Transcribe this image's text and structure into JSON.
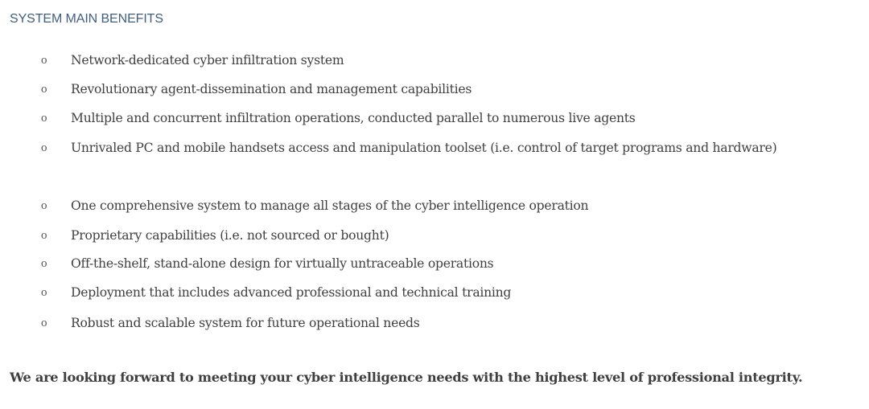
{
  "heading": "SYSTEM MAIN BENEFITS",
  "bullet_glyph": "o",
  "benefits": [
    "Network-dedicated cyber infiltration system",
    "Revolutionary agent-dissemination and management capabilities",
    "Multiple and concurrent infiltration operations, conducted parallel to numerous live agents",
    "Unrivaled PC and mobile handsets access and manipulation toolset (i.e. control of target programs and hardware)",
    "One comprehensive system to manage all stages of the cyber intelligence operation",
    "Proprietary capabilities (i.e. not sourced or bought)",
    "Off-the-shelf, stand-alone design for virtually untraceable operations",
    "Deployment that includes advanced professional and technical training",
    "Robust and scalable system for future operational needs"
  ],
  "closing": "We are looking forward to meeting your cyber intelligence needs with the highest level of professional integrity.",
  "colors": {
    "heading": "#3f5e80",
    "text": "#3f3f3f"
  }
}
